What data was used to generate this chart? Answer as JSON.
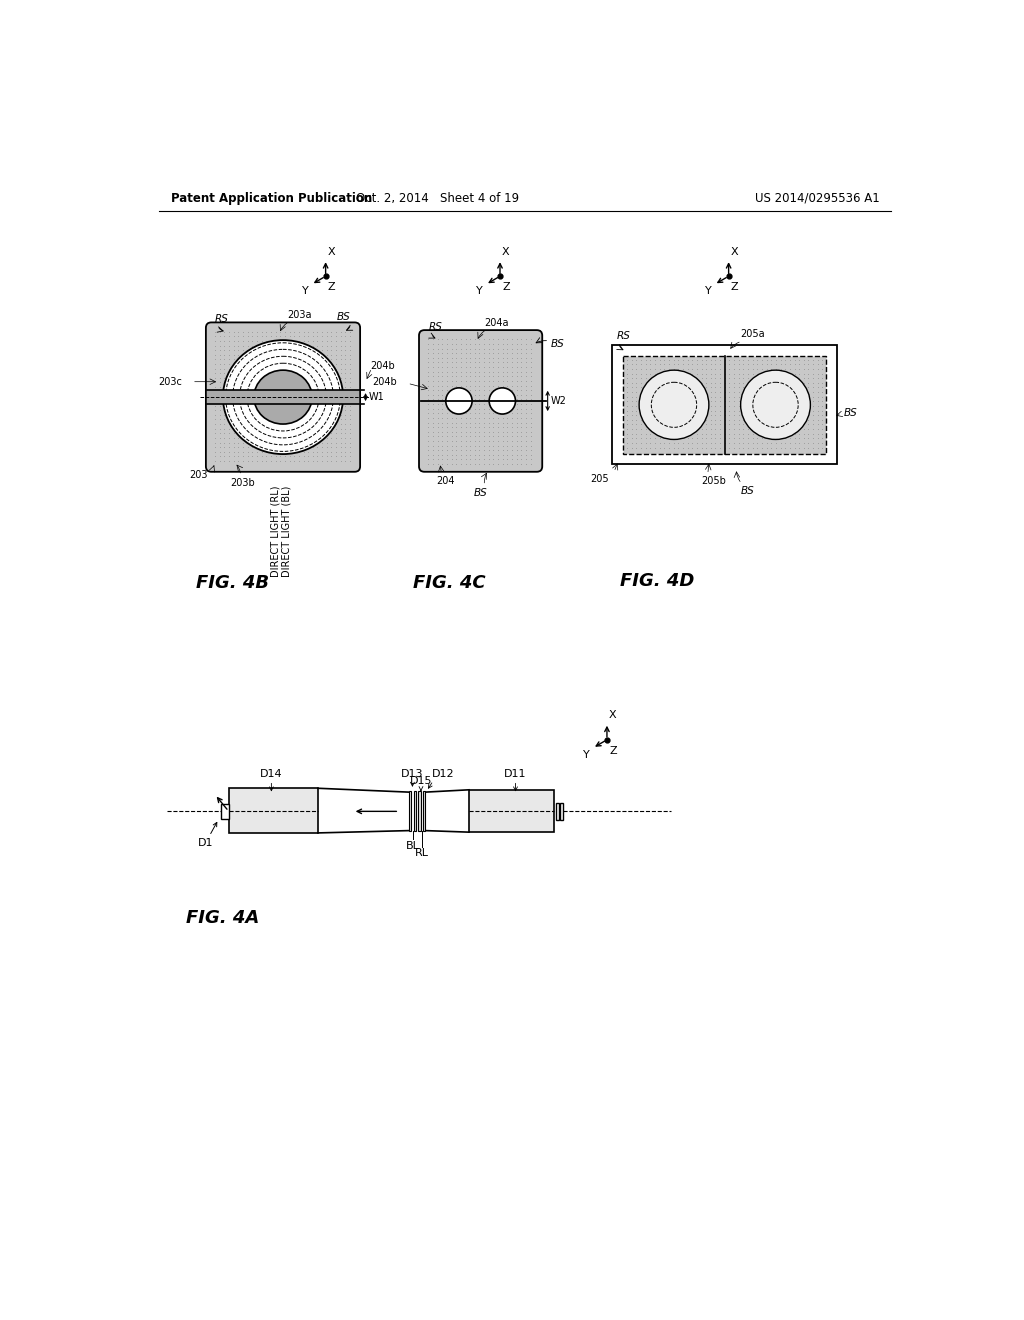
{
  "title_left": "Patent Application Publication",
  "title_center": "Oct. 2, 2014   Sheet 4 of 19",
  "title_right": "US 2014/0295536 A1",
  "bg_color": "#ffffff",
  "line_color": "#000000",
  "stipple_color": "#c8c8c8"
}
